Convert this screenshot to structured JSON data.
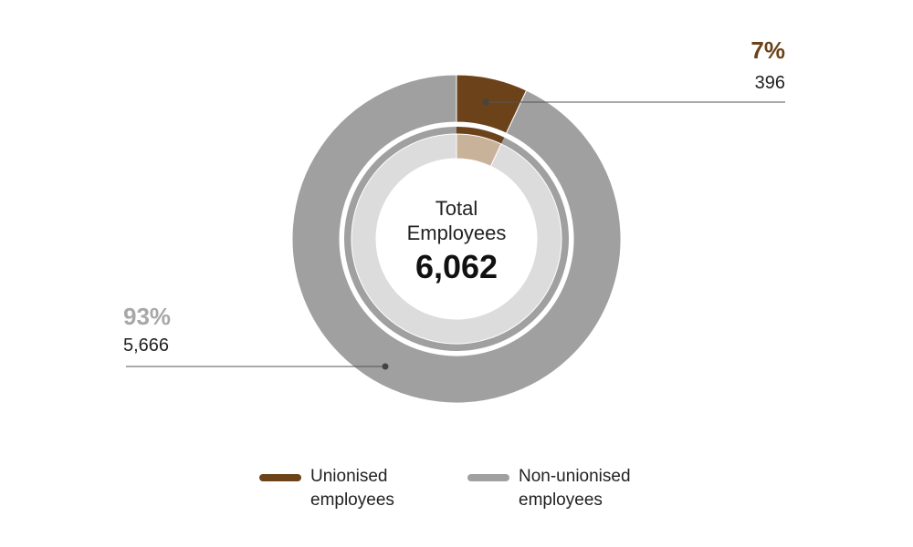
{
  "chart_data": {
    "type": "pie",
    "center_label": "Total Employees",
    "total": {
      "value": 6062,
      "label": "6,062"
    },
    "categories": [
      "Unionised employees",
      "Non-unionised employees"
    ],
    "values": [
      7,
      93
    ],
    "value_labels": [
      "7%",
      "93%"
    ],
    "counts": [
      396,
      5666
    ],
    "count_labels": [
      "396",
      "5,666"
    ],
    "colors": [
      "#6b4219",
      "#a0a0a0"
    ],
    "inner_colors": [
      "#c9b29a",
      "#dcdcdc"
    ],
    "label_colors": [
      "#6b4219",
      "#a8a8a8"
    ]
  }
}
